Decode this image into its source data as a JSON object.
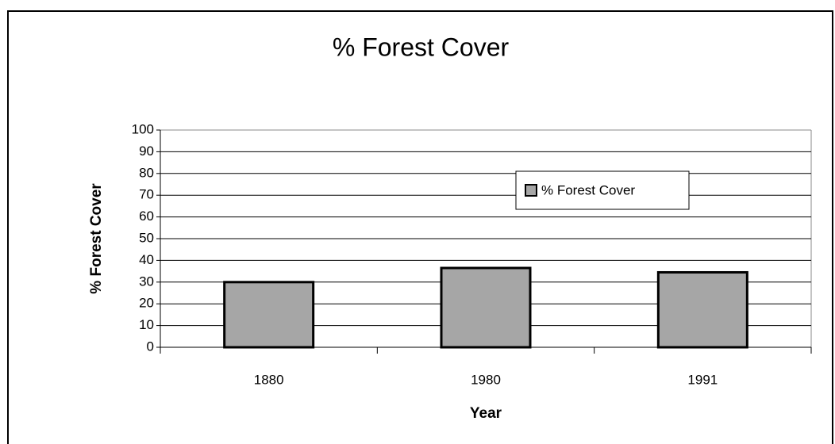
{
  "chart_data": {
    "type": "bar",
    "title": "% Forest Cover",
    "x_label": "Year",
    "y_label": "% Forest Cover",
    "categories": [
      "1880",
      "1980",
      "1991"
    ],
    "series": [
      {
        "name": "% Forest Cover",
        "color": "#a6a6a6",
        "values": [
          30,
          36.5,
          34.5
        ]
      }
    ],
    "ylim": [
      0,
      100
    ],
    "yticks": [
      0,
      10,
      20,
      30,
      40,
      50,
      60,
      70,
      80,
      90,
      100
    ],
    "grid": true
  }
}
